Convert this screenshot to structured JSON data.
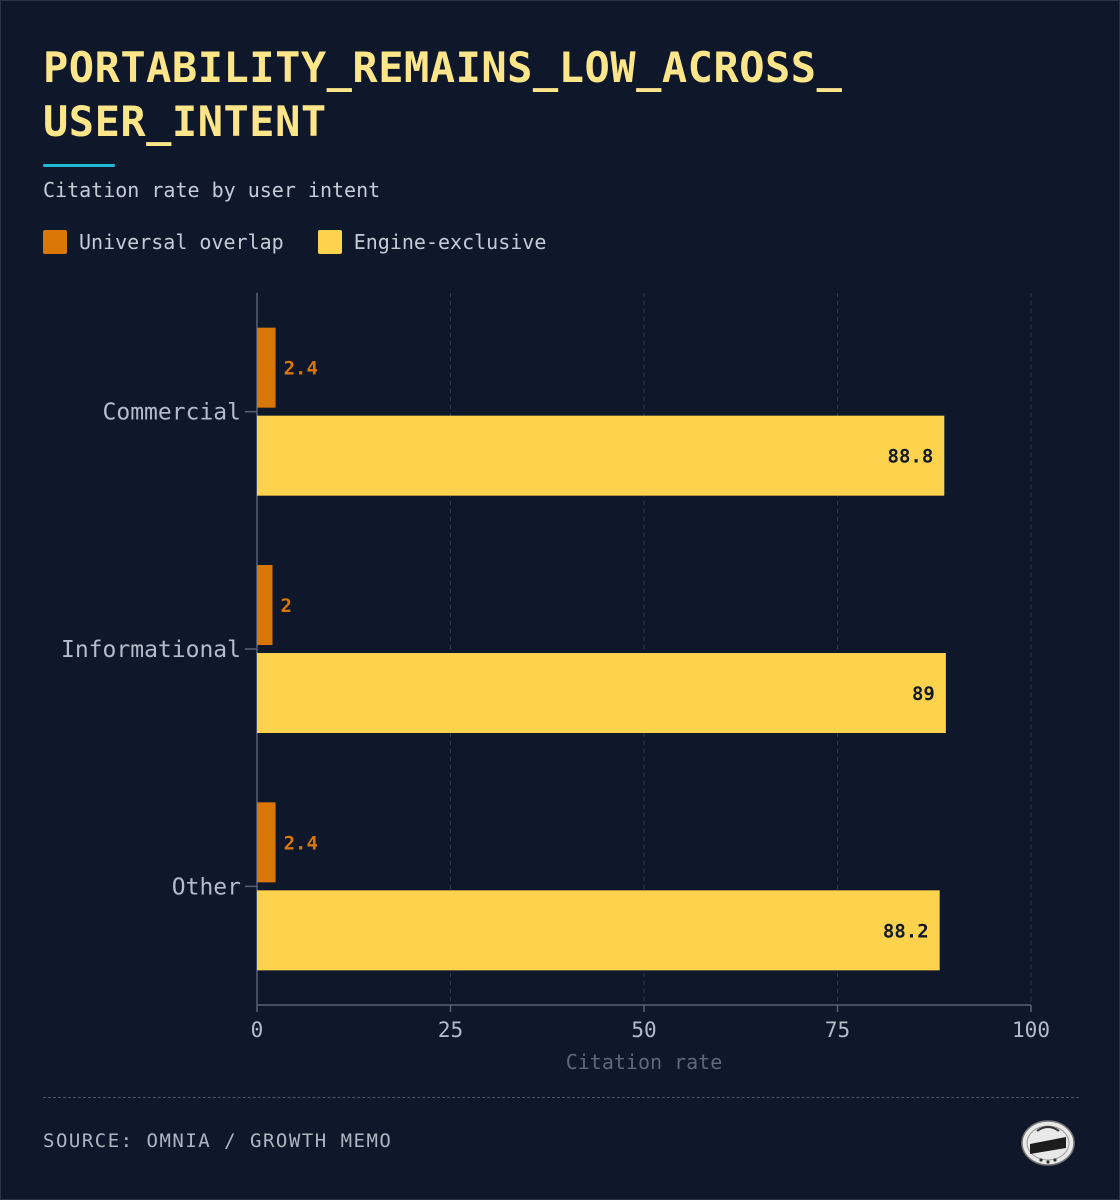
{
  "title_lines": [
    "PORTABILITY_REMAINS_LOW_ACROSS_",
    "USER_INTENT"
  ],
  "subtitle": "Citation rate by user intent",
  "source": "SOURCE: OMNIA / GROWTH MEMO",
  "logo_icon": "growth-memo-logo-icon",
  "colors": {
    "background": "#0f172a",
    "title": "#fde68a",
    "accent": "#22b8d8",
    "universal": "#d97706",
    "exclusive": "#fdd24d"
  },
  "chart_data": {
    "type": "bar",
    "orientation": "horizontal",
    "categories": [
      "Commercial",
      "Informational",
      "Other"
    ],
    "series": [
      {
        "name": "Universal overlap",
        "values": [
          2.4,
          2,
          2.4
        ]
      },
      {
        "name": "Engine-exclusive",
        "values": [
          88.8,
          89,
          88.2
        ]
      }
    ],
    "data_labels": [
      [
        "2.4",
        "2",
        "2.4"
      ],
      [
        "88.8",
        "89",
        "88.2"
      ]
    ],
    "xlabel": "Citation rate",
    "ylabel": "",
    "xlim": [
      0,
      100
    ],
    "xticks": [
      "0",
      "25",
      "50",
      "75",
      "100"
    ],
    "grid": true,
    "legend": "top-left"
  }
}
